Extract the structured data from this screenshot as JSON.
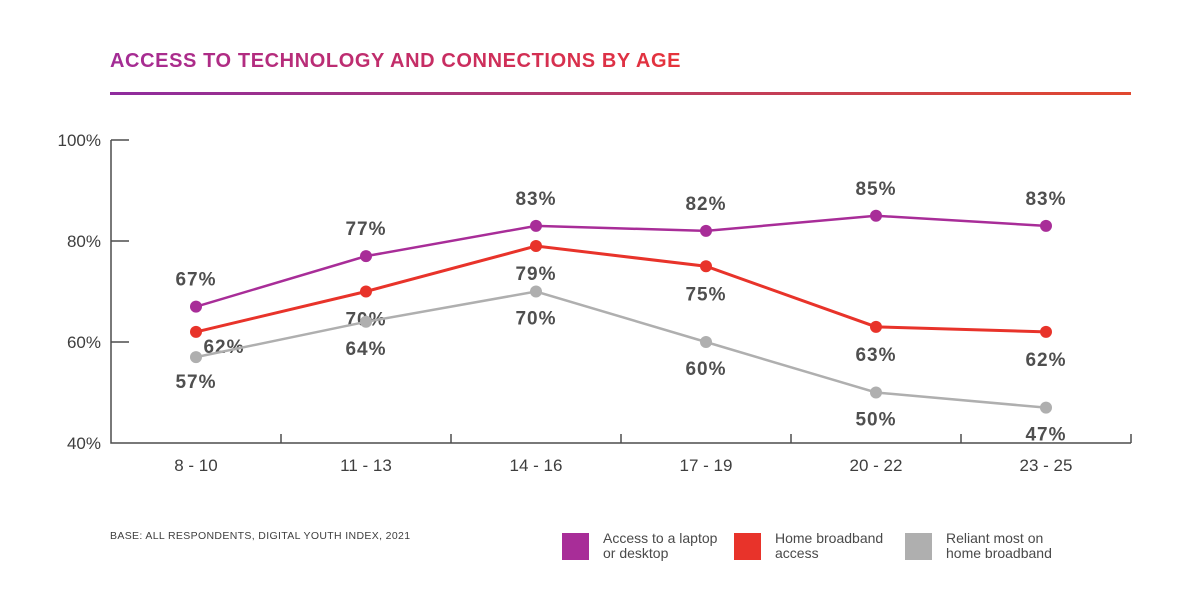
{
  "title": "ACCESS TO TECHNOLOGY AND CONNECTIONS BY AGE",
  "source_note": "BASE: ALL RESPONDENTS, DIGITAL YOUTH INDEX, 2021",
  "colors": {
    "purple": "#A82D98",
    "red": "#E8332A",
    "gray": "#AFAFAF",
    "title_gradient_start": "#A32C96",
    "title_gradient_end": "#E6333A",
    "axis_line": "#4D4D4D",
    "axis_text": "#3E3E3E",
    "data_label_text": "#4F4F4F"
  },
  "chart_data": {
    "type": "line",
    "title": "ACCESS TO TECHNOLOGY AND CONNECTIONS BY AGE",
    "categories": [
      "8 - 10",
      "11 - 13",
      "14 - 16",
      "17 - 19",
      "20 - 22",
      "23 - 25"
    ],
    "series": [
      {
        "name": "Access to a laptop or desktop",
        "color_key": "purple",
        "values": [
          67,
          77,
          83,
          82,
          85,
          83
        ]
      },
      {
        "name": "Home broadband access",
        "color_key": "red",
        "values": [
          62,
          70,
          79,
          75,
          63,
          62
        ]
      },
      {
        "name": "Reliant most on home broadband",
        "color_key": "gray",
        "values": [
          57,
          64,
          70,
          60,
          50,
          47
        ]
      }
    ],
    "ylim": [
      40,
      100
    ],
    "yticks": [
      {
        "value": 40,
        "label": "40%"
      },
      {
        "value": 60,
        "label": "60%"
      },
      {
        "value": 80,
        "label": "80%"
      },
      {
        "value": 100,
        "label": "100%"
      }
    ],
    "data_label_format": "{v}%",
    "grid": false,
    "legend_position": "bottom"
  },
  "legend": {
    "items": [
      {
        "color_key": "purple",
        "label_lines": [
          "Access to a laptop",
          "or desktop"
        ]
      },
      {
        "color_key": "red",
        "label_lines": [
          "Home broadband",
          "access"
        ]
      },
      {
        "color_key": "gray",
        "label_lines": [
          "Reliant most on",
          "home broadband"
        ]
      }
    ]
  }
}
